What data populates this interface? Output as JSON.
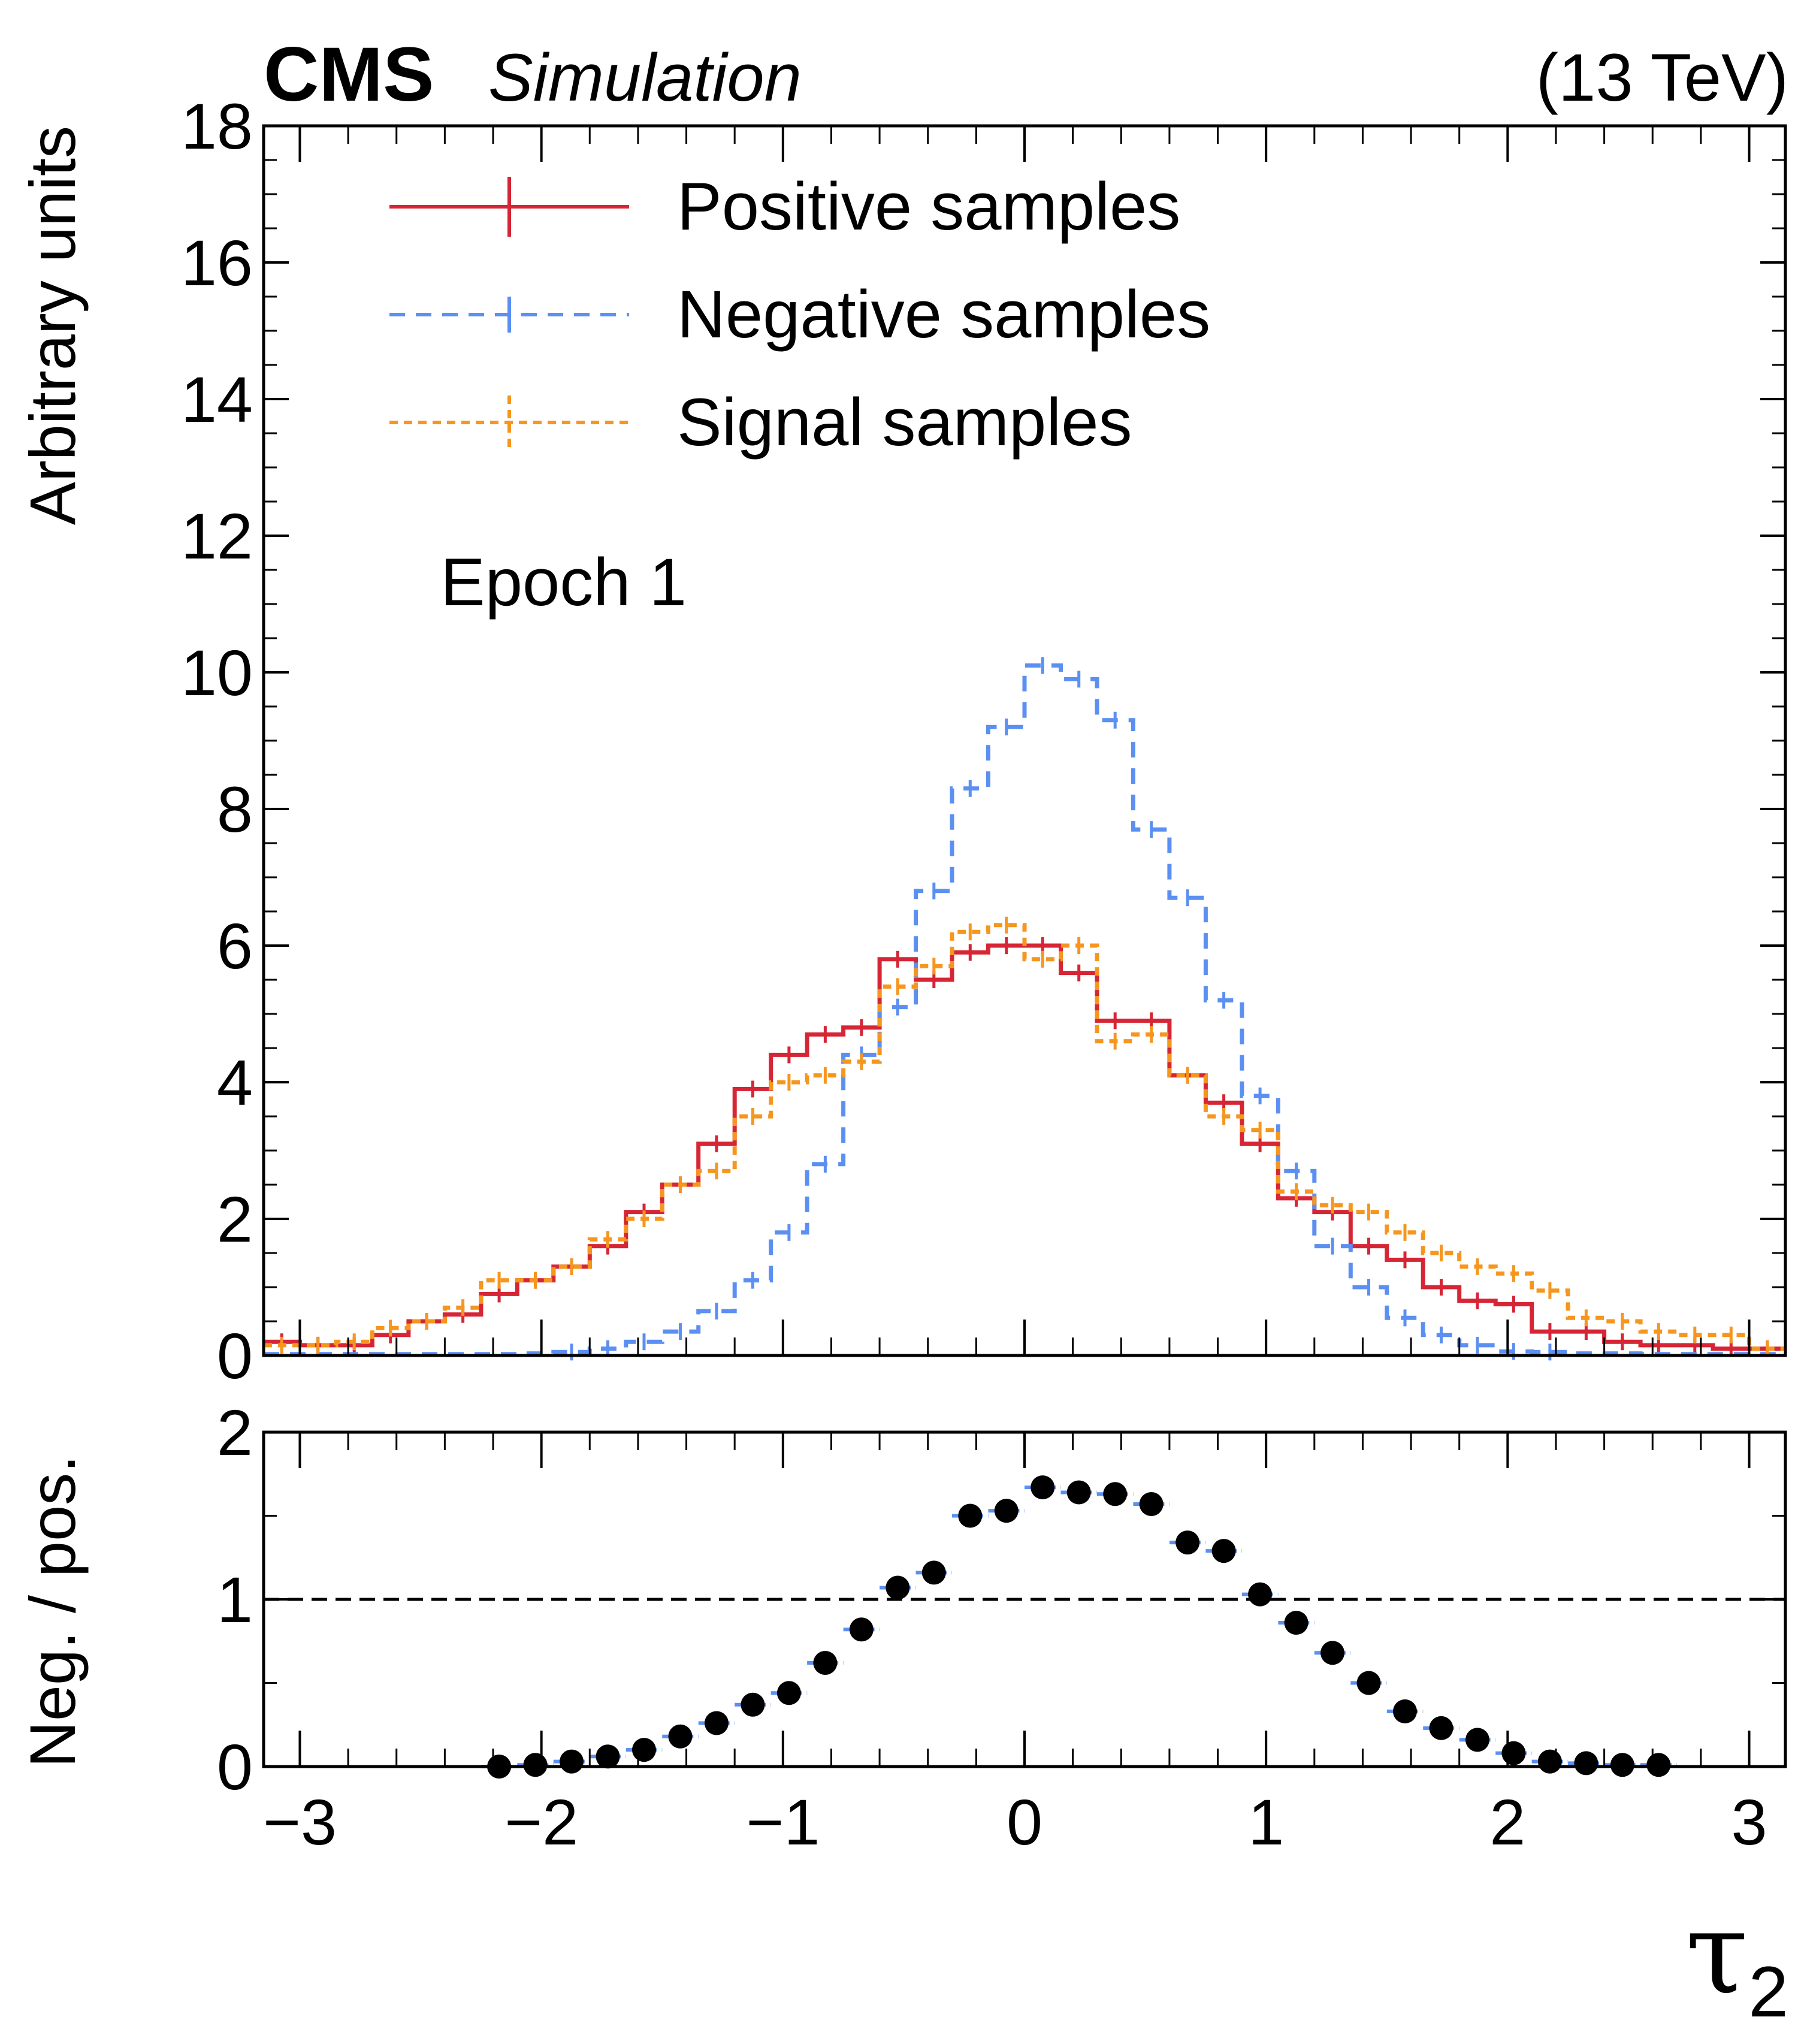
{
  "header": {
    "experiment": "CMS",
    "status": "Simulation",
    "energy": "(13 TeV)"
  },
  "annotation": "Epoch 1",
  "colors": {
    "positive": "#d62535",
    "negative": "#5b8ff2",
    "signal": "#f5961f",
    "ratio_points": "#000000",
    "reference_line": "#000000"
  },
  "chart_data": [
    {
      "type": "histogram",
      "panel": "main",
      "xlabel": "τ",
      "xlabel_subscript": "2",
      "ylabel": "Arbitrary units",
      "xlim": [
        -3.15,
        3.15
      ],
      "ylim": [
        0,
        18
      ],
      "x_ticks": [
        -3,
        -2,
        -1,
        0,
        1,
        2,
        3
      ],
      "x_tick_labels": [
        "−3",
        "−2",
        "−1",
        "0",
        "1",
        "2",
        "3"
      ],
      "y_ticks": [
        0,
        2,
        4,
        6,
        8,
        10,
        12,
        14,
        16,
        18
      ],
      "y_tick_labels": [
        "0",
        "2",
        "4",
        "6",
        "8",
        "10",
        "12",
        "14",
        "16",
        "18"
      ],
      "legend_position": "top-left",
      "bin_edges": [
        -3.15,
        -3.0,
        -2.85,
        -2.7,
        -2.55,
        -2.4,
        -2.25,
        -2.1,
        -1.95,
        -1.8,
        -1.65,
        -1.5,
        -1.35,
        -1.2,
        -1.05,
        -0.9,
        -0.75,
        -0.6,
        -0.45,
        -0.3,
        -0.15,
        0.0,
        0.15,
        0.3,
        0.45,
        0.6,
        0.75,
        0.9,
        1.05,
        1.2,
        1.35,
        1.5,
        1.65,
        1.8,
        1.95,
        2.1,
        2.25,
        2.4,
        2.55,
        2.7,
        2.85,
        3.0,
        3.15
      ],
      "series": [
        {
          "name": "Positive samples",
          "style": "solid",
          "values": [
            0.2,
            0.15,
            0.15,
            0.3,
            0.5,
            0.6,
            0.9,
            1.1,
            1.3,
            1.6,
            2.1,
            2.5,
            3.1,
            3.9,
            4.4,
            4.7,
            4.8,
            5.8,
            5.5,
            5.9,
            6.0,
            6.0,
            5.6,
            4.9,
            4.9,
            4.1,
            3.7,
            3.1,
            2.3,
            2.1,
            1.6,
            1.4,
            1.0,
            0.8,
            0.75,
            0.35,
            0.35,
            0.2,
            0.15,
            0.15,
            0.1,
            0.1
          ]
        },
        {
          "name": "Negative samples",
          "style": "dashed",
          "values": [
            0.02,
            0.02,
            0.02,
            0.02,
            0.02,
            0.02,
            0.02,
            0.03,
            0.05,
            0.1,
            0.2,
            0.35,
            0.65,
            1.1,
            1.8,
            2.8,
            4.4,
            5.1,
            6.8,
            8.3,
            9.2,
            10.1,
            9.9,
            9.3,
            7.7,
            6.7,
            5.2,
            3.8,
            2.7,
            1.6,
            1.0,
            0.55,
            0.3,
            0.15,
            0.06,
            0.05,
            0.03,
            0.03,
            0.02,
            0.02,
            0.02,
            0.02
          ]
        },
        {
          "name": "Signal samples",
          "style": "dotted",
          "values": [
            0.15,
            0.15,
            0.2,
            0.4,
            0.5,
            0.7,
            1.1,
            1.1,
            1.3,
            1.7,
            2.0,
            2.5,
            2.7,
            3.5,
            4.0,
            4.1,
            4.3,
            5.4,
            5.7,
            6.2,
            6.3,
            5.8,
            6.0,
            4.6,
            4.7,
            4.1,
            3.5,
            3.3,
            2.4,
            2.2,
            2.1,
            1.8,
            1.5,
            1.3,
            1.2,
            0.95,
            0.55,
            0.5,
            0.35,
            0.3,
            0.3,
            0.1
          ]
        }
      ]
    },
    {
      "type": "scatter",
      "panel": "ratio",
      "ylabel": "Neg. / pos.",
      "ylim": [
        0,
        2
      ],
      "y_ticks": [
        0,
        1,
        2
      ],
      "y_tick_labels": [
        "0",
        "1",
        "2"
      ],
      "reference_line": 1,
      "x": [
        -2.175,
        -2.025,
        -1.875,
        -1.725,
        -1.575,
        -1.425,
        -1.275,
        -1.125,
        -0.975,
        -0.825,
        -0.675,
        -0.525,
        -0.375,
        -0.225,
        -0.075,
        0.075,
        0.225,
        0.375,
        0.525,
        0.675,
        0.825,
        0.975,
        1.125,
        1.275,
        1.425,
        1.575,
        1.725,
        1.875,
        2.025,
        2.175,
        2.325,
        2.475,
        2.625
      ],
      "values": [
        0.0,
        0.01,
        0.03,
        0.06,
        0.1,
        0.18,
        0.26,
        0.37,
        0.44,
        0.62,
        0.82,
        1.07,
        1.16,
        1.5,
        1.53,
        1.67,
        1.64,
        1.63,
        1.57,
        1.34,
        1.29,
        1.03,
        0.86,
        0.68,
        0.5,
        0.33,
        0.23,
        0.16,
        0.08,
        0.03,
        0.02,
        0.01,
        0.01
      ]
    }
  ]
}
